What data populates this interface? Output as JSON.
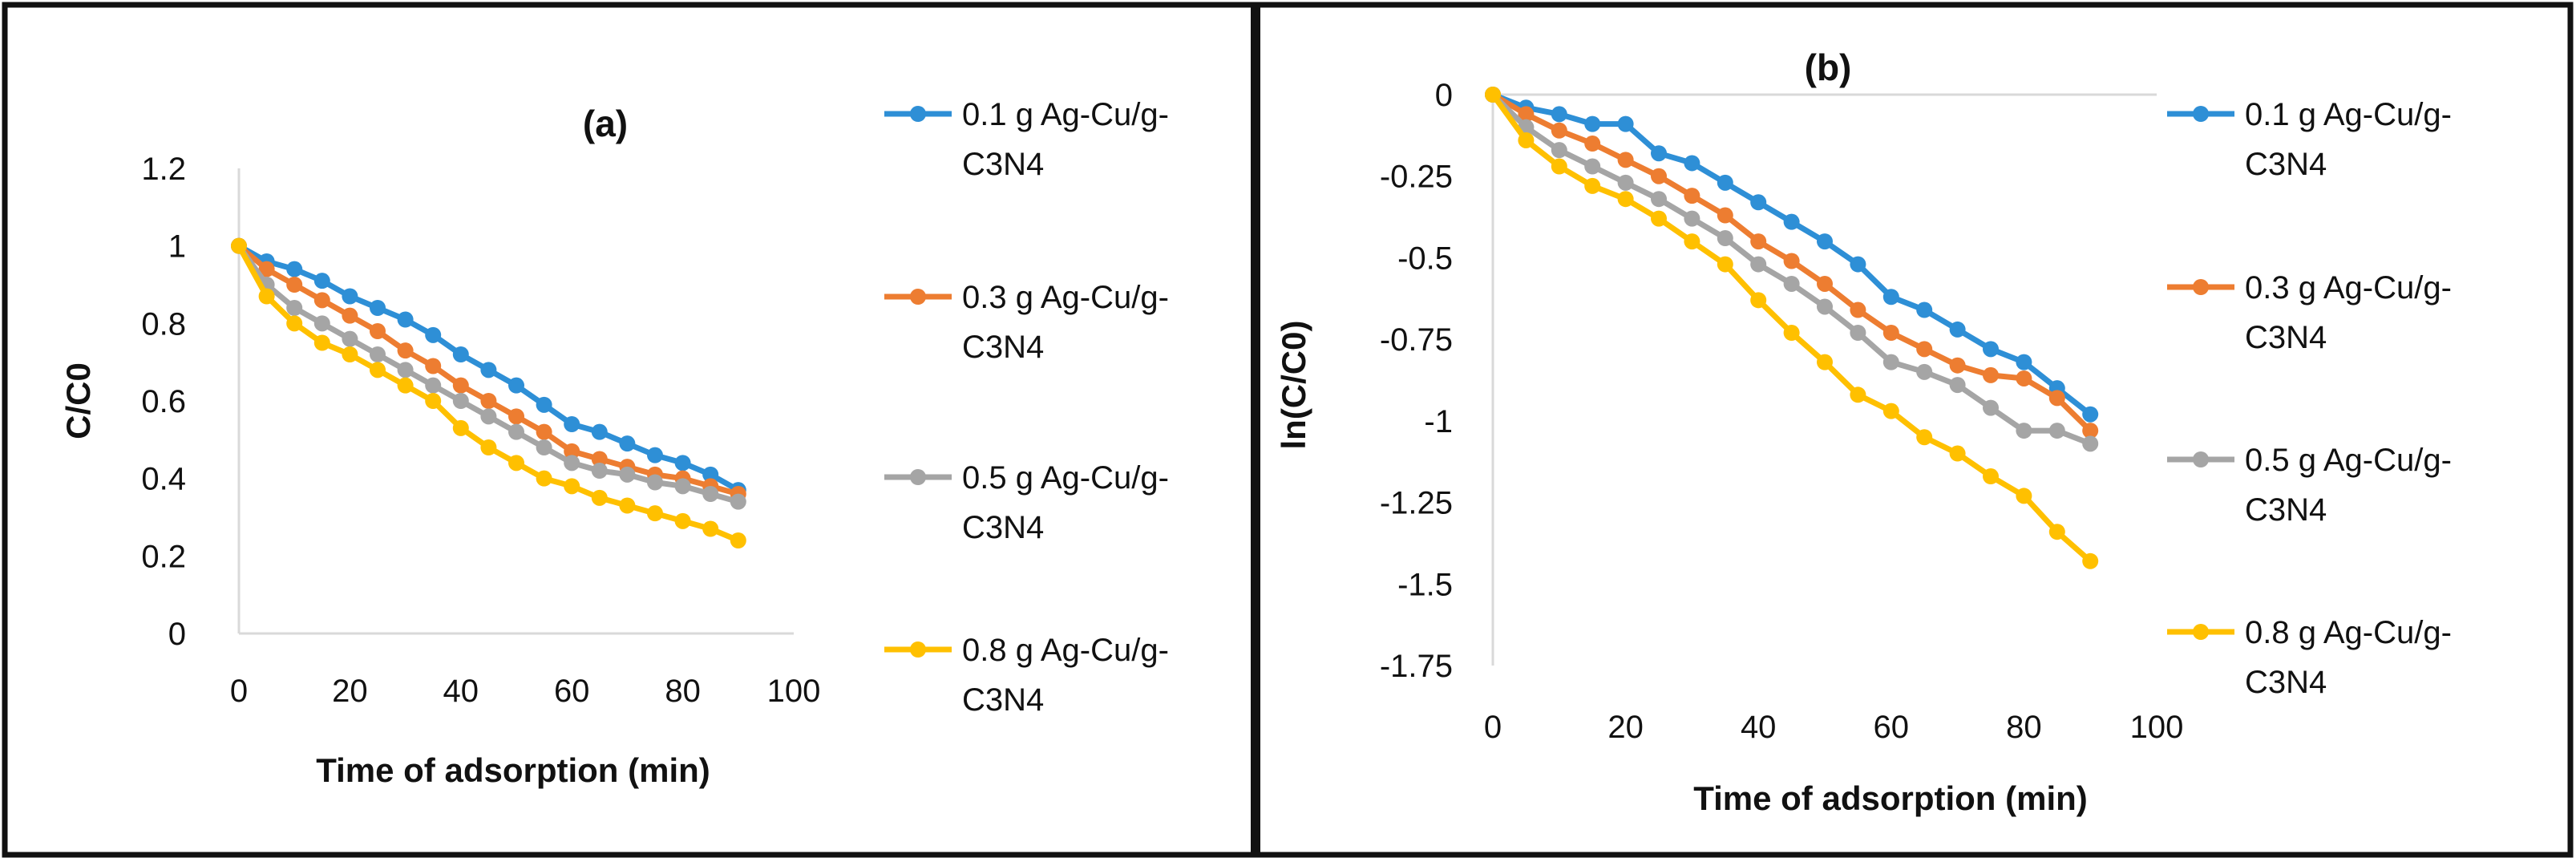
{
  "chart_data": [
    {
      "type": "line",
      "panel_label": "(a)",
      "xlabel": "Time of adsorption (min)",
      "ylabel": "C/C0",
      "xlim": [
        0,
        100
      ],
      "ylim": [
        0,
        1.2
      ],
      "xticks": [
        "0",
        "20",
        "40",
        "60",
        "80",
        "100"
      ],
      "yticks": [
        "0",
        "0.2",
        "0.4",
        "0.6",
        "0.8",
        "1",
        "1.2"
      ],
      "grid": false,
      "legend_position": "right",
      "x": [
        0,
        5,
        10,
        15,
        20,
        25,
        30,
        35,
        40,
        45,
        50,
        55,
        60,
        65,
        70,
        75,
        80,
        85,
        90
      ],
      "series": [
        {
          "name": "0.1 g Ag-Cu/g-",
          "name_line2": "C3N4",
          "color": "#2E8FD6",
          "values": [
            1.0,
            0.96,
            0.94,
            0.91,
            0.87,
            0.84,
            0.81,
            0.77,
            0.72,
            0.68,
            0.64,
            0.59,
            0.54,
            0.52,
            0.49,
            0.46,
            0.44,
            0.41,
            0.37
          ]
        },
        {
          "name": "0.3 g Ag-Cu/g-",
          "name_line2": "C3N4",
          "color": "#ED7D31",
          "values": [
            1.0,
            0.94,
            0.9,
            0.86,
            0.82,
            0.78,
            0.73,
            0.69,
            0.64,
            0.6,
            0.56,
            0.52,
            0.47,
            0.45,
            0.43,
            0.41,
            0.4,
            0.38,
            0.36
          ]
        },
        {
          "name": "0.5 g Ag-Cu/g-",
          "name_line2": "C3N4",
          "color": "#A5A5A5",
          "values": [
            1.0,
            0.9,
            0.84,
            0.8,
            0.76,
            0.72,
            0.68,
            0.64,
            0.6,
            0.56,
            0.52,
            0.48,
            0.44,
            0.42,
            0.41,
            0.39,
            0.38,
            0.36,
            0.34
          ]
        },
        {
          "name": "0.8 g Ag-Cu/g-",
          "name_line2": "C3N4",
          "color": "#FFC000",
          "values": [
            1.0,
            0.87,
            0.8,
            0.75,
            0.72,
            0.68,
            0.64,
            0.6,
            0.53,
            0.48,
            0.44,
            0.4,
            0.38,
            0.35,
            0.33,
            0.31,
            0.29,
            0.27,
            0.24
          ]
        }
      ]
    },
    {
      "type": "line",
      "panel_label": "(b)",
      "xlabel": "Time of adsorption (min)",
      "ylabel": "ln(C/C0)",
      "xlim": [
        0,
        100
      ],
      "ylim": [
        -1.75,
        0
      ],
      "xticks": [
        "0",
        "20",
        "40",
        "60",
        "80",
        "100"
      ],
      "yticks": [
        "0",
        "-0.25",
        "-0.5",
        "-0.75",
        "-1",
        "-1.25",
        "-1.5",
        "-1.75"
      ],
      "grid": false,
      "legend_position": "right",
      "x": [
        0,
        5,
        10,
        15,
        20,
        25,
        30,
        35,
        40,
        45,
        50,
        55,
        60,
        65,
        70,
        75,
        80,
        85,
        90
      ],
      "series": [
        {
          "name": "0.1 g Ag-Cu/g-",
          "name_line2": "C3N4",
          "color": "#2E8FD6",
          "values": [
            0,
            -0.04,
            -0.06,
            -0.09,
            -0.09,
            -0.18,
            -0.21,
            -0.27,
            -0.33,
            -0.39,
            -0.45,
            -0.52,
            -0.62,
            -0.66,
            -0.72,
            -0.78,
            -0.82,
            -0.9,
            -0.98
          ]
        },
        {
          "name": "0.3 g Ag-Cu/g-",
          "name_line2": "C3N4",
          "color": "#ED7D31",
          "values": [
            0,
            -0.06,
            -0.11,
            -0.15,
            -0.2,
            -0.25,
            -0.31,
            -0.37,
            -0.45,
            -0.51,
            -0.58,
            -0.66,
            -0.73,
            -0.78,
            -0.83,
            -0.86,
            -0.87,
            -0.93,
            -1.03
          ]
        },
        {
          "name": "0.5 g Ag-Cu/g-",
          "name_line2": "C3N4",
          "color": "#A5A5A5",
          "values": [
            0,
            -0.1,
            -0.17,
            -0.22,
            -0.27,
            -0.32,
            -0.38,
            -0.44,
            -0.52,
            -0.58,
            -0.65,
            -0.73,
            -0.82,
            -0.85,
            -0.89,
            -0.96,
            -1.03,
            -1.03,
            -1.07
          ]
        },
        {
          "name": "0.8 g Ag-Cu/g-",
          "name_line2": "C3N4",
          "color": "#FFC000",
          "values": [
            0,
            -0.14,
            -0.22,
            -0.28,
            -0.32,
            -0.38,
            -0.45,
            -0.52,
            -0.63,
            -0.73,
            -0.82,
            -0.92,
            -0.97,
            -1.05,
            -1.1,
            -1.17,
            -1.23,
            -1.34,
            -1.43
          ]
        }
      ]
    }
  ]
}
